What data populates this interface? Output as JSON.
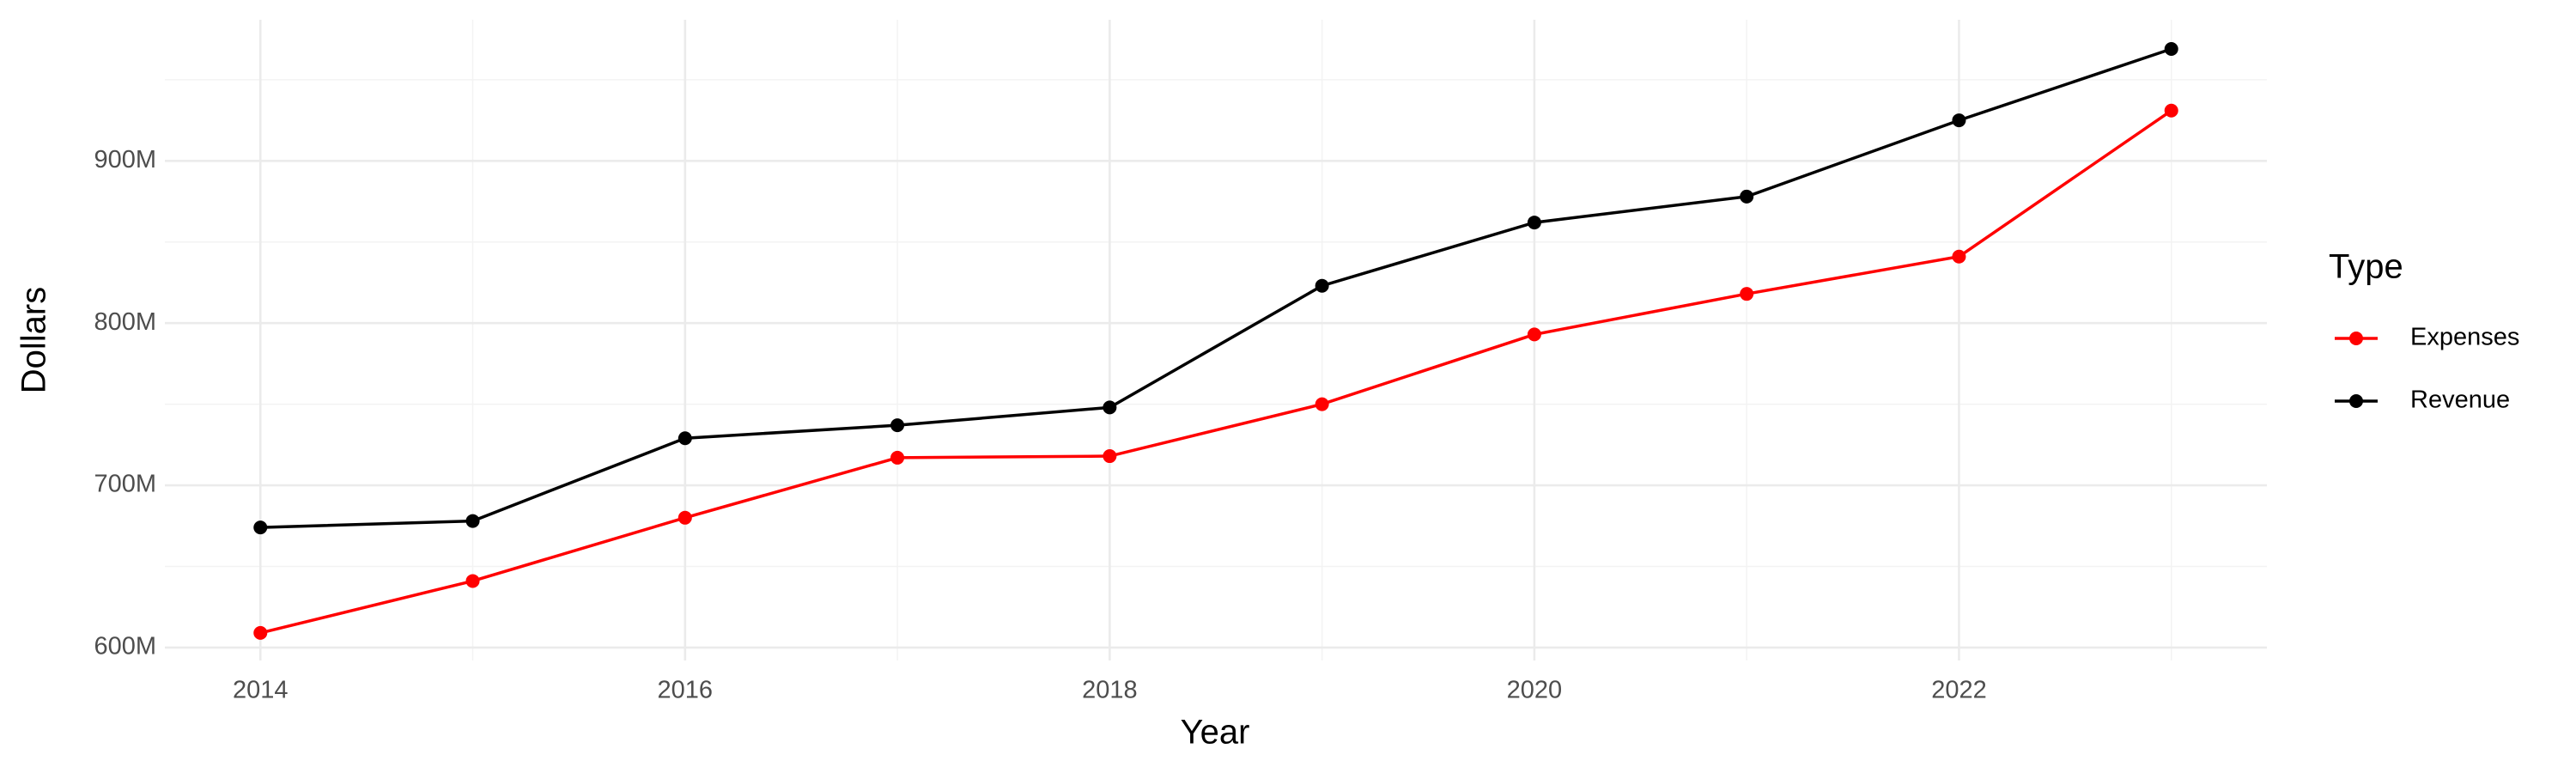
{
  "chart_data": {
    "type": "line",
    "x_label": "Year",
    "y_label": "Dollars",
    "legend_title": "Type",
    "x": [
      2014,
      2015,
      2016,
      2017,
      2018,
      2019,
      2020,
      2021,
      2022,
      2023
    ],
    "series": [
      {
        "name": "Expenses",
        "color": "#ff0000",
        "values": [
          609000000,
          641000000,
          680000000,
          717000000,
          718000000,
          750000000,
          793000000,
          818000000,
          841000000,
          931000000
        ]
      },
      {
        "name": "Revenue",
        "color": "#000000",
        "values": [
          674000000,
          678000000,
          729000000,
          737000000,
          748000000,
          823000000,
          862000000,
          878000000,
          925000000,
          969000000
        ]
      }
    ],
    "xlim": [
      2013.55,
      2023.45
    ],
    "xticks": [
      2014,
      2016,
      2018,
      2020,
      2022
    ],
    "ylim": [
      592000000,
      987000000
    ],
    "yticks": [
      {
        "value": 600000000,
        "label": "600M"
      },
      {
        "value": 700000000,
        "label": "700M"
      },
      {
        "value": 800000000,
        "label": "800M"
      },
      {
        "value": 900000000,
        "label": "900M"
      }
    ],
    "grid": true,
    "legend_position": "right"
  }
}
